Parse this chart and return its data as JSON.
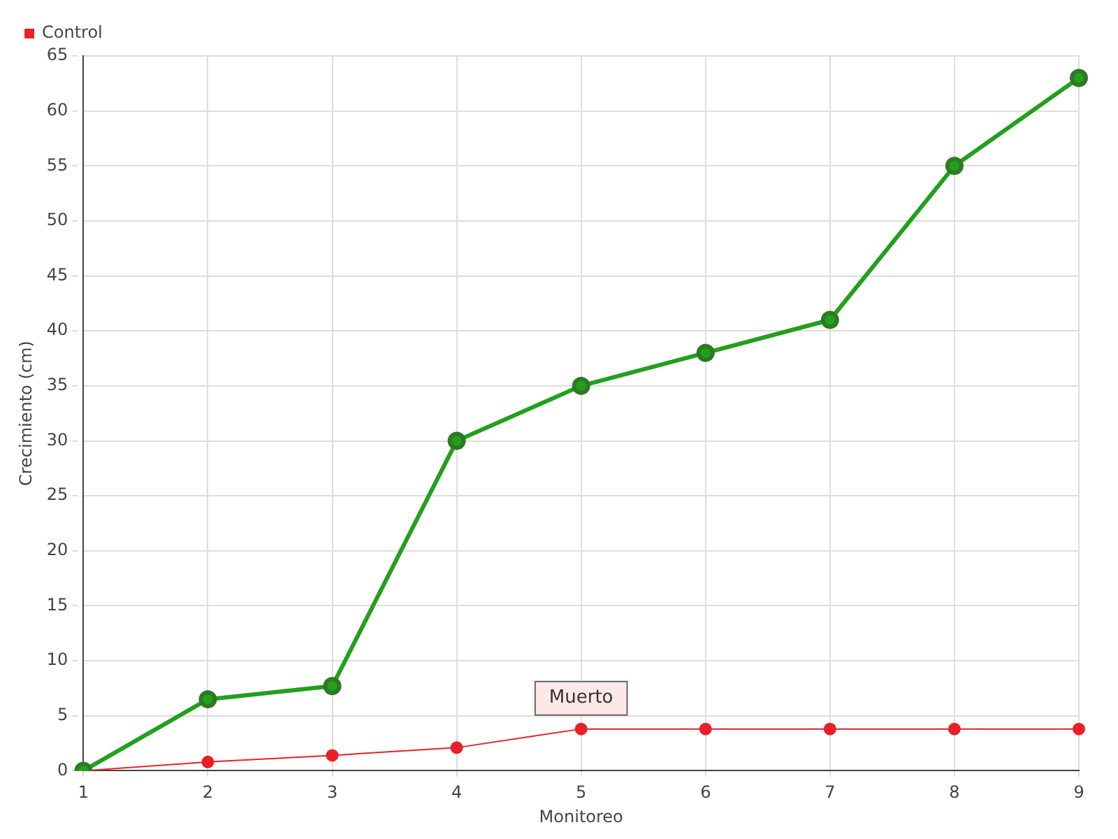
{
  "chart_data": {
    "type": "line",
    "xlabel": "Monitoreo",
    "ylabel": "Crecimiento (cm)",
    "categories": [
      "1",
      "2",
      "3",
      "4",
      "5",
      "6",
      "7",
      "8",
      "9"
    ],
    "series": [
      {
        "color": "#22a01c",
        "values": [
          0,
          6.5,
          7.7,
          30,
          35,
          38,
          41,
          55,
          63
        ]
      },
      {
        "name": "Control",
        "color": "#e8202a",
        "values": [
          0,
          0.8,
          1.4,
          2.1,
          3.8,
          3.8,
          3.8,
          3.8,
          3.8
        ]
      }
    ],
    "ylim": [
      0,
      65
    ],
    "yticks": [
      0,
      5,
      10,
      15,
      20,
      25,
      30,
      35,
      40,
      45,
      50,
      55,
      60,
      65
    ],
    "grid": true,
    "legend": "top left",
    "marker": "circle",
    "line_style": "solid",
    "annotations": [
      {
        "text": "Muerto",
        "x": "5",
        "y": 3.8
      }
    ]
  }
}
